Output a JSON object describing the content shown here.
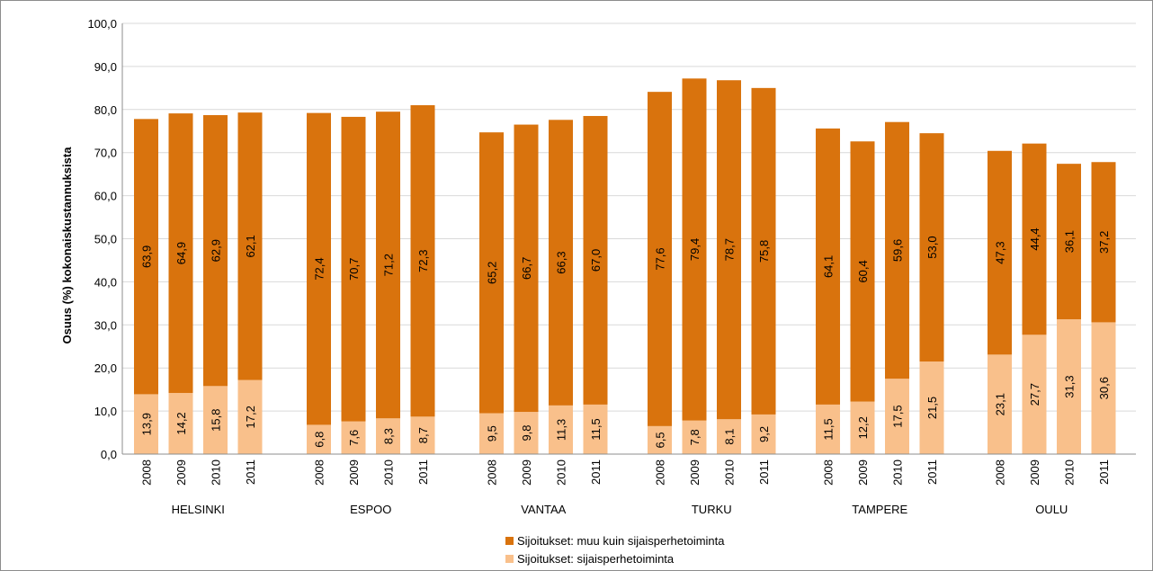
{
  "chart_data": {
    "type": "bar",
    "stacked": true,
    "ylabel": "Osuus (%) kokonaiskustannuksista",
    "ylim": [
      0,
      100
    ],
    "yticks": [
      "0,0",
      "10,0",
      "20,0",
      "30,0",
      "40,0",
      "50,0",
      "60,0",
      "70,0",
      "80,0",
      "90,0",
      "100,0"
    ],
    "ytick_values": [
      0,
      10,
      20,
      30,
      40,
      50,
      60,
      70,
      80,
      90,
      100
    ],
    "groups": [
      {
        "city": "HELSINKI",
        "years": [
          "2008",
          "2009",
          "2010",
          "2011"
        ],
        "bottom": [
          13.9,
          14.2,
          15.8,
          17.2
        ],
        "top": [
          63.9,
          64.9,
          62.9,
          62.1
        ],
        "bottom_labels": [
          "13,9",
          "14,2",
          "15,8",
          "17,2"
        ],
        "top_labels": [
          "63,9",
          "64,9",
          "62,9",
          "62,1"
        ]
      },
      {
        "city": "ESPOO",
        "years": [
          "2008",
          "2009",
          "2010",
          "2011"
        ],
        "bottom": [
          6.8,
          7.6,
          8.3,
          8.7
        ],
        "top": [
          72.4,
          70.7,
          71.2,
          72.3
        ],
        "bottom_labels": [
          "6,8",
          "7,6",
          "8,3",
          "8,7"
        ],
        "top_labels": [
          "72,4",
          "70,7",
          "71,2",
          "72,3"
        ]
      },
      {
        "city": "VANTAA",
        "years": [
          "2008",
          "2009",
          "2010",
          "2011"
        ],
        "bottom": [
          9.5,
          9.8,
          11.3,
          11.5
        ],
        "top": [
          65.2,
          66.7,
          66.3,
          67.0
        ],
        "bottom_labels": [
          "9,5",
          "9,8",
          "11,3",
          "11,5"
        ],
        "top_labels": [
          "65,2",
          "66,7",
          "66,3",
          "67,0"
        ]
      },
      {
        "city": "TURKU",
        "years": [
          "2008",
          "2009",
          "2010",
          "2011"
        ],
        "bottom": [
          6.5,
          7.8,
          8.1,
          9.2
        ],
        "top": [
          77.6,
          79.4,
          78.7,
          75.8
        ],
        "bottom_labels": [
          "6,5",
          "7,8",
          "8,1",
          "9,2"
        ],
        "top_labels": [
          "77,6",
          "79,4",
          "78,7",
          "75,8"
        ]
      },
      {
        "city": "TAMPERE",
        "years": [
          "2008",
          "2009",
          "2010",
          "2011"
        ],
        "bottom": [
          11.5,
          12.2,
          17.5,
          21.5
        ],
        "top": [
          64.1,
          60.4,
          59.6,
          53.0
        ],
        "bottom_labels": [
          "11,5",
          "12,2",
          "17,5",
          "21,5"
        ],
        "top_labels": [
          "64,1",
          "60,4",
          "59,6",
          "53,0"
        ]
      },
      {
        "city": "OULU",
        "years": [
          "2008",
          "2009",
          "2010",
          "2011"
        ],
        "bottom": [
          23.1,
          27.7,
          31.3,
          30.6
        ],
        "top": [
          47.3,
          44.4,
          36.1,
          37.2
        ],
        "bottom_labels": [
          "23,1",
          "27,7",
          "31,3",
          "30,6"
        ],
        "top_labels": [
          "47,3",
          "44,4",
          "36,1",
          "37,2"
        ]
      }
    ],
    "series": [
      {
        "name": "Sijoitukset: muu kuin sijaisperhetoiminta",
        "color": "#D9730D",
        "position": "top"
      },
      {
        "name": "Sijoitukset: sijaisperhetoiminta",
        "color": "#F9C08B",
        "position": "bottom"
      }
    ],
    "grid": true,
    "legend": "bottom-center"
  }
}
